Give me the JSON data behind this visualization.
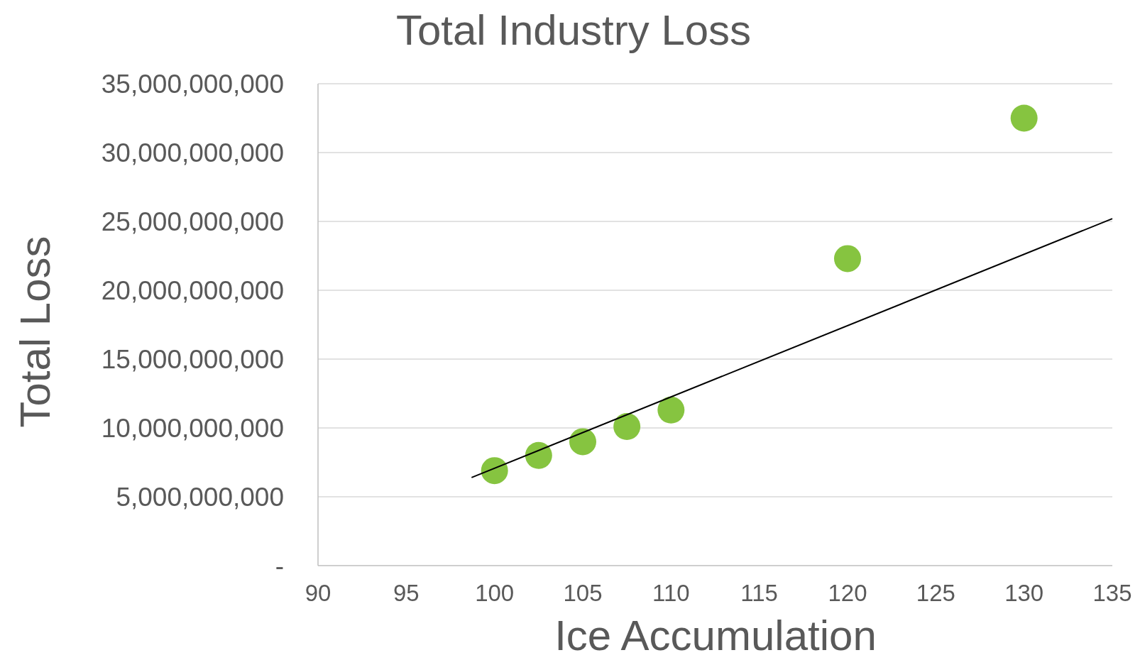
{
  "chart_data": {
    "type": "scatter",
    "title": "Total Industry Loss",
    "xlabel": "Ice Accumulation",
    "ylabel": "Total Loss",
    "xlim": [
      90,
      135
    ],
    "xticks": [
      90,
      95,
      100,
      105,
      110,
      115,
      120,
      125,
      130,
      135
    ],
    "ylim": [
      0,
      35000000000
    ],
    "yticks": [
      {
        "value": 0,
        "label": "-"
      },
      {
        "value": 5000000000,
        "label": "5,000,000,000"
      },
      {
        "value": 10000000000,
        "label": "10,000,000,000"
      },
      {
        "value": 15000000000,
        "label": "15,000,000,000"
      },
      {
        "value": 20000000000,
        "label": "20,000,000,000"
      },
      {
        "value": 25000000000,
        "label": "25,000,000,000"
      },
      {
        "value": 30000000000,
        "label": "30,000,000,000"
      },
      {
        "value": 35000000000,
        "label": "35,000,000,000"
      }
    ],
    "grid": "y",
    "series": [
      {
        "marker": "circle",
        "color": "#86c440",
        "x": [
          100,
          102.5,
          105,
          107.5,
          110,
          120,
          130
        ],
        "values": [
          6900000000,
          8000000000,
          9000000000,
          10100000000,
          11300000000,
          22300000000,
          32500000000
        ]
      },
      {
        "type": "line",
        "color": "#000000",
        "x": [
          98.7,
          135
        ],
        "values": [
          6400000000,
          25200000000
        ]
      }
    ]
  }
}
